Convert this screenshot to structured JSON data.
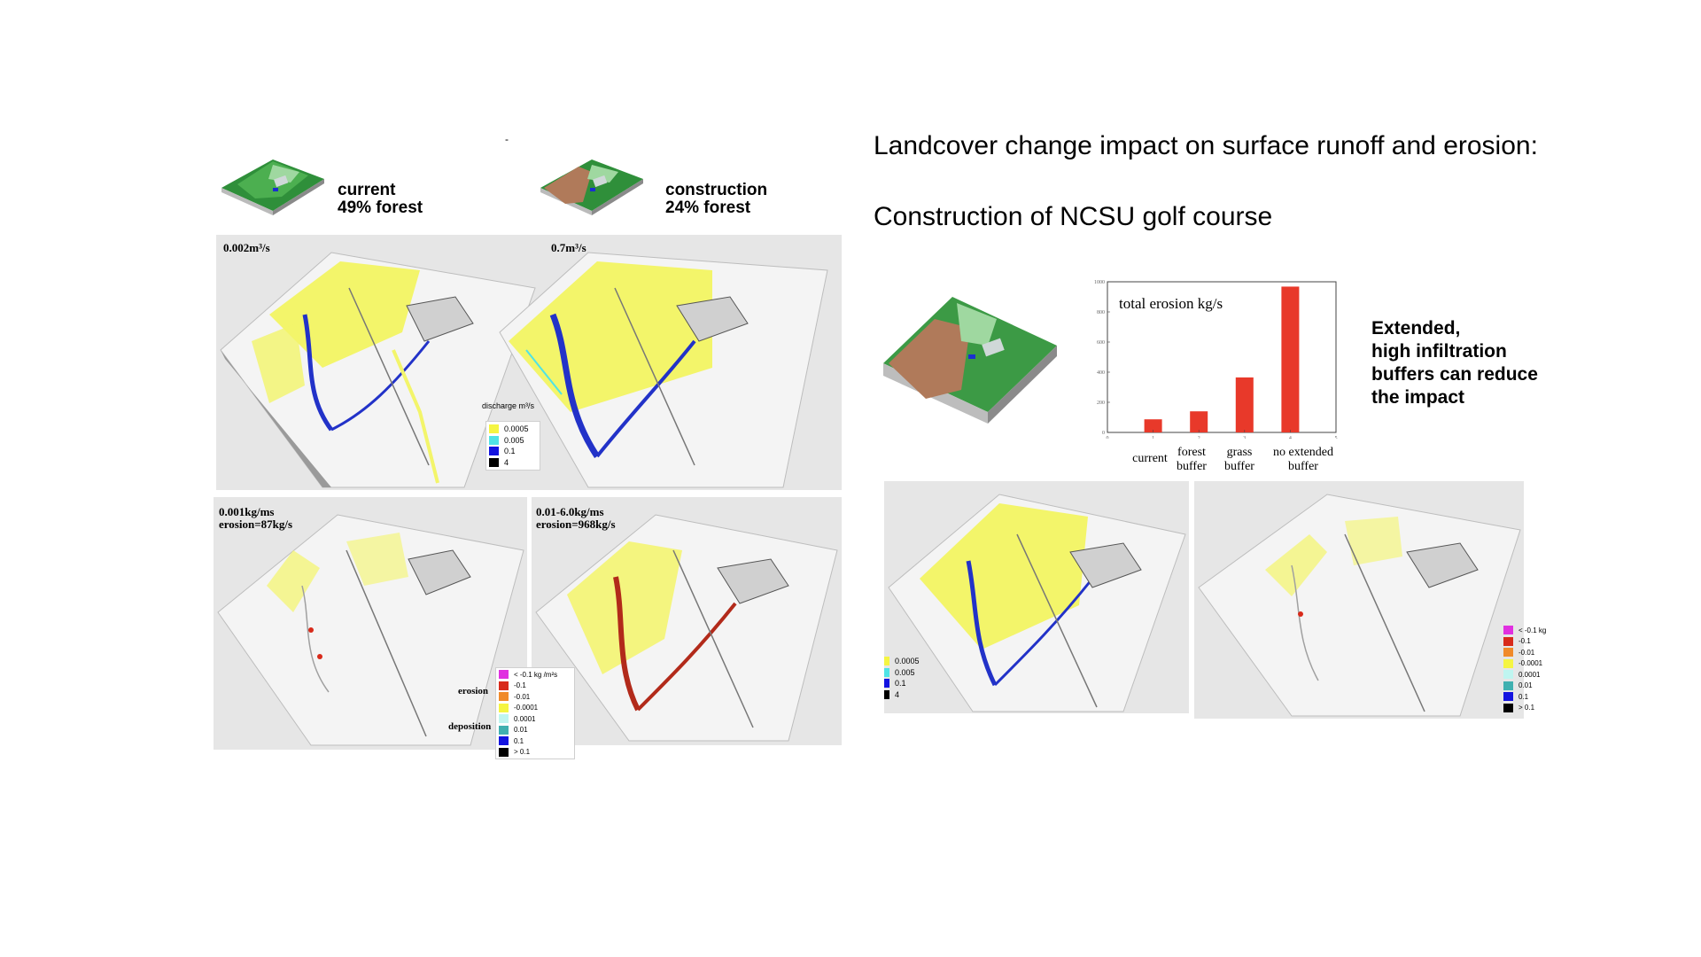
{
  "slide": {
    "title_line1": "Landcover change impact on surface runoff and erosion:",
    "title_line2": "Construction of NCSU golf course",
    "dash": "-"
  },
  "thumbnails": {
    "current": {
      "label1": "current",
      "label2": "49% forest"
    },
    "construction": {
      "label1": "construction",
      "label2": "24% forest"
    }
  },
  "panels": {
    "discharge_current": {
      "label": "0.002m³/s"
    },
    "discharge_construction": {
      "label": "0.7m³/s"
    },
    "erosion_current": {
      "label1": "0.001kg/ms",
      "label2": "erosion=87kg/s"
    },
    "erosion_construction": {
      "label1": "0.01-6.0kg/ms",
      "label2": "erosion=968kg/s"
    }
  },
  "discharge_legend": {
    "title": "discharge m³/s",
    "items": [
      {
        "label": "0.0005",
        "color": "#f5f542"
      },
      {
        "label": "0.005",
        "color": "#4fe3e6"
      },
      {
        "label": "0.1",
        "color": "#1313e0"
      },
      {
        "label": "4",
        "color": "#000000"
      }
    ]
  },
  "erosion_legend_left": {
    "erosion_label": "erosion",
    "deposition_label": "deposition",
    "items": [
      {
        "label": "< -0.1  kg /m²s",
        "color": "#e030e0"
      },
      {
        "label": "-0.1",
        "color": "#d82a1a"
      },
      {
        "label": "-0.01",
        "color": "#f08a2a"
      },
      {
        "label": "-0.0001",
        "color": "#f5f542"
      },
      {
        "label": "0.0001",
        "color": "#bff5f0"
      },
      {
        "label": "0.01",
        "color": "#3fb0b0"
      },
      {
        "label": "0.1",
        "color": "#1313e0"
      },
      {
        "label": "> 0.1",
        "color": "#000000"
      }
    ]
  },
  "discharge_legend_right": {
    "items": [
      {
        "label": "0.0005",
        "color": "#f5f542"
      },
      {
        "label": "0.005",
        "color": "#4fe3e6"
      },
      {
        "label": "0.1",
        "color": "#1313e0"
      },
      {
        "label": "4",
        "color": "#000000"
      }
    ]
  },
  "erosion_legend_right": {
    "items": [
      {
        "label": "< -0.1  kg",
        "color": "#e030e0"
      },
      {
        "label": "-0.1",
        "color": "#d82a1a"
      },
      {
        "label": "-0.01",
        "color": "#f08a2a"
      },
      {
        "label": "-0.0001",
        "color": "#f5f542"
      },
      {
        "label": "0.0001",
        "color": "#bff5f0"
      },
      {
        "label": "0.01",
        "color": "#3fb0b0"
      },
      {
        "label": "0.1",
        "color": "#1313e0"
      },
      {
        "label": "> 0.1",
        "color": "#000000"
      }
    ]
  },
  "side_text": {
    "line1": "Extended,",
    "line2": "high infiltration",
    "line3": "buffers can reduce",
    "line4": "the impact"
  },
  "chart_data": {
    "type": "bar",
    "title": "total erosion kg/s",
    "x": [
      1,
      2,
      3,
      4
    ],
    "categories": [
      "current",
      "forest buffer",
      "grass buffer",
      "no extended buffer"
    ],
    "values": [
      87,
      140,
      365,
      968
    ],
    "xlim": [
      0,
      5
    ],
    "ylim": [
      0,
      1000
    ],
    "xticks": [
      0,
      1,
      2,
      3,
      4,
      5
    ],
    "yticks": [
      0,
      200,
      400,
      600,
      800,
      1000
    ],
    "bar_color": "#e8392a",
    "grid": false
  }
}
